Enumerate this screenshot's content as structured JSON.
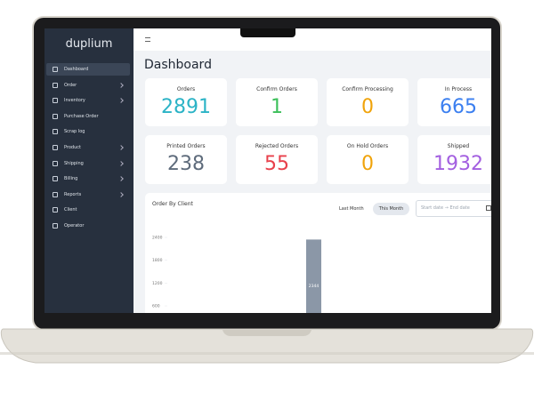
{
  "sidebar": {
    "brand": "duplium",
    "nav": [
      "Dashboard",
      "Order",
      "Inventory",
      "Purchase Order",
      "Scrap log",
      "Product",
      "Shipping",
      "Billing",
      "Reports",
      "Client",
      "Operator"
    ]
  },
  "header": {
    "title": "Dashboard"
  },
  "cards": [
    {
      "label": "Orders",
      "value": 2891,
      "color": "#2bb3c6"
    },
    {
      "label": "Confirm Orders",
      "value": 1,
      "color": "#3cbf5a"
    },
    {
      "label": "Confirm Processing",
      "value": 0,
      "color": "#f0a30a"
    },
    {
      "label": "In Process",
      "value": 665,
      "color": "#3b7ff0"
    },
    {
      "label": "Printed Orders",
      "value": 238,
      "color": "#5e6b7b"
    },
    {
      "label": "Rejected Orders",
      "value": 55,
      "color": "#e8404b"
    },
    {
      "label": "On Hold Orders",
      "value": 0,
      "color": "#f0a30a"
    },
    {
      "label": "Shipped",
      "value": 1932,
      "color": "#a35fe0"
    }
  ],
  "order_chart": {
    "type": "bar",
    "title": "Order By Client",
    "filters": [
      "Last Month",
      "This Month"
    ],
    "date_placeholder": "Start date → End date",
    "ylim": [
      0,
      2400
    ],
    "yticks": [
      600,
      1200,
      1800,
      2400
    ],
    "values": [
      2344
    ],
    "color": "#8b97a7"
  }
}
